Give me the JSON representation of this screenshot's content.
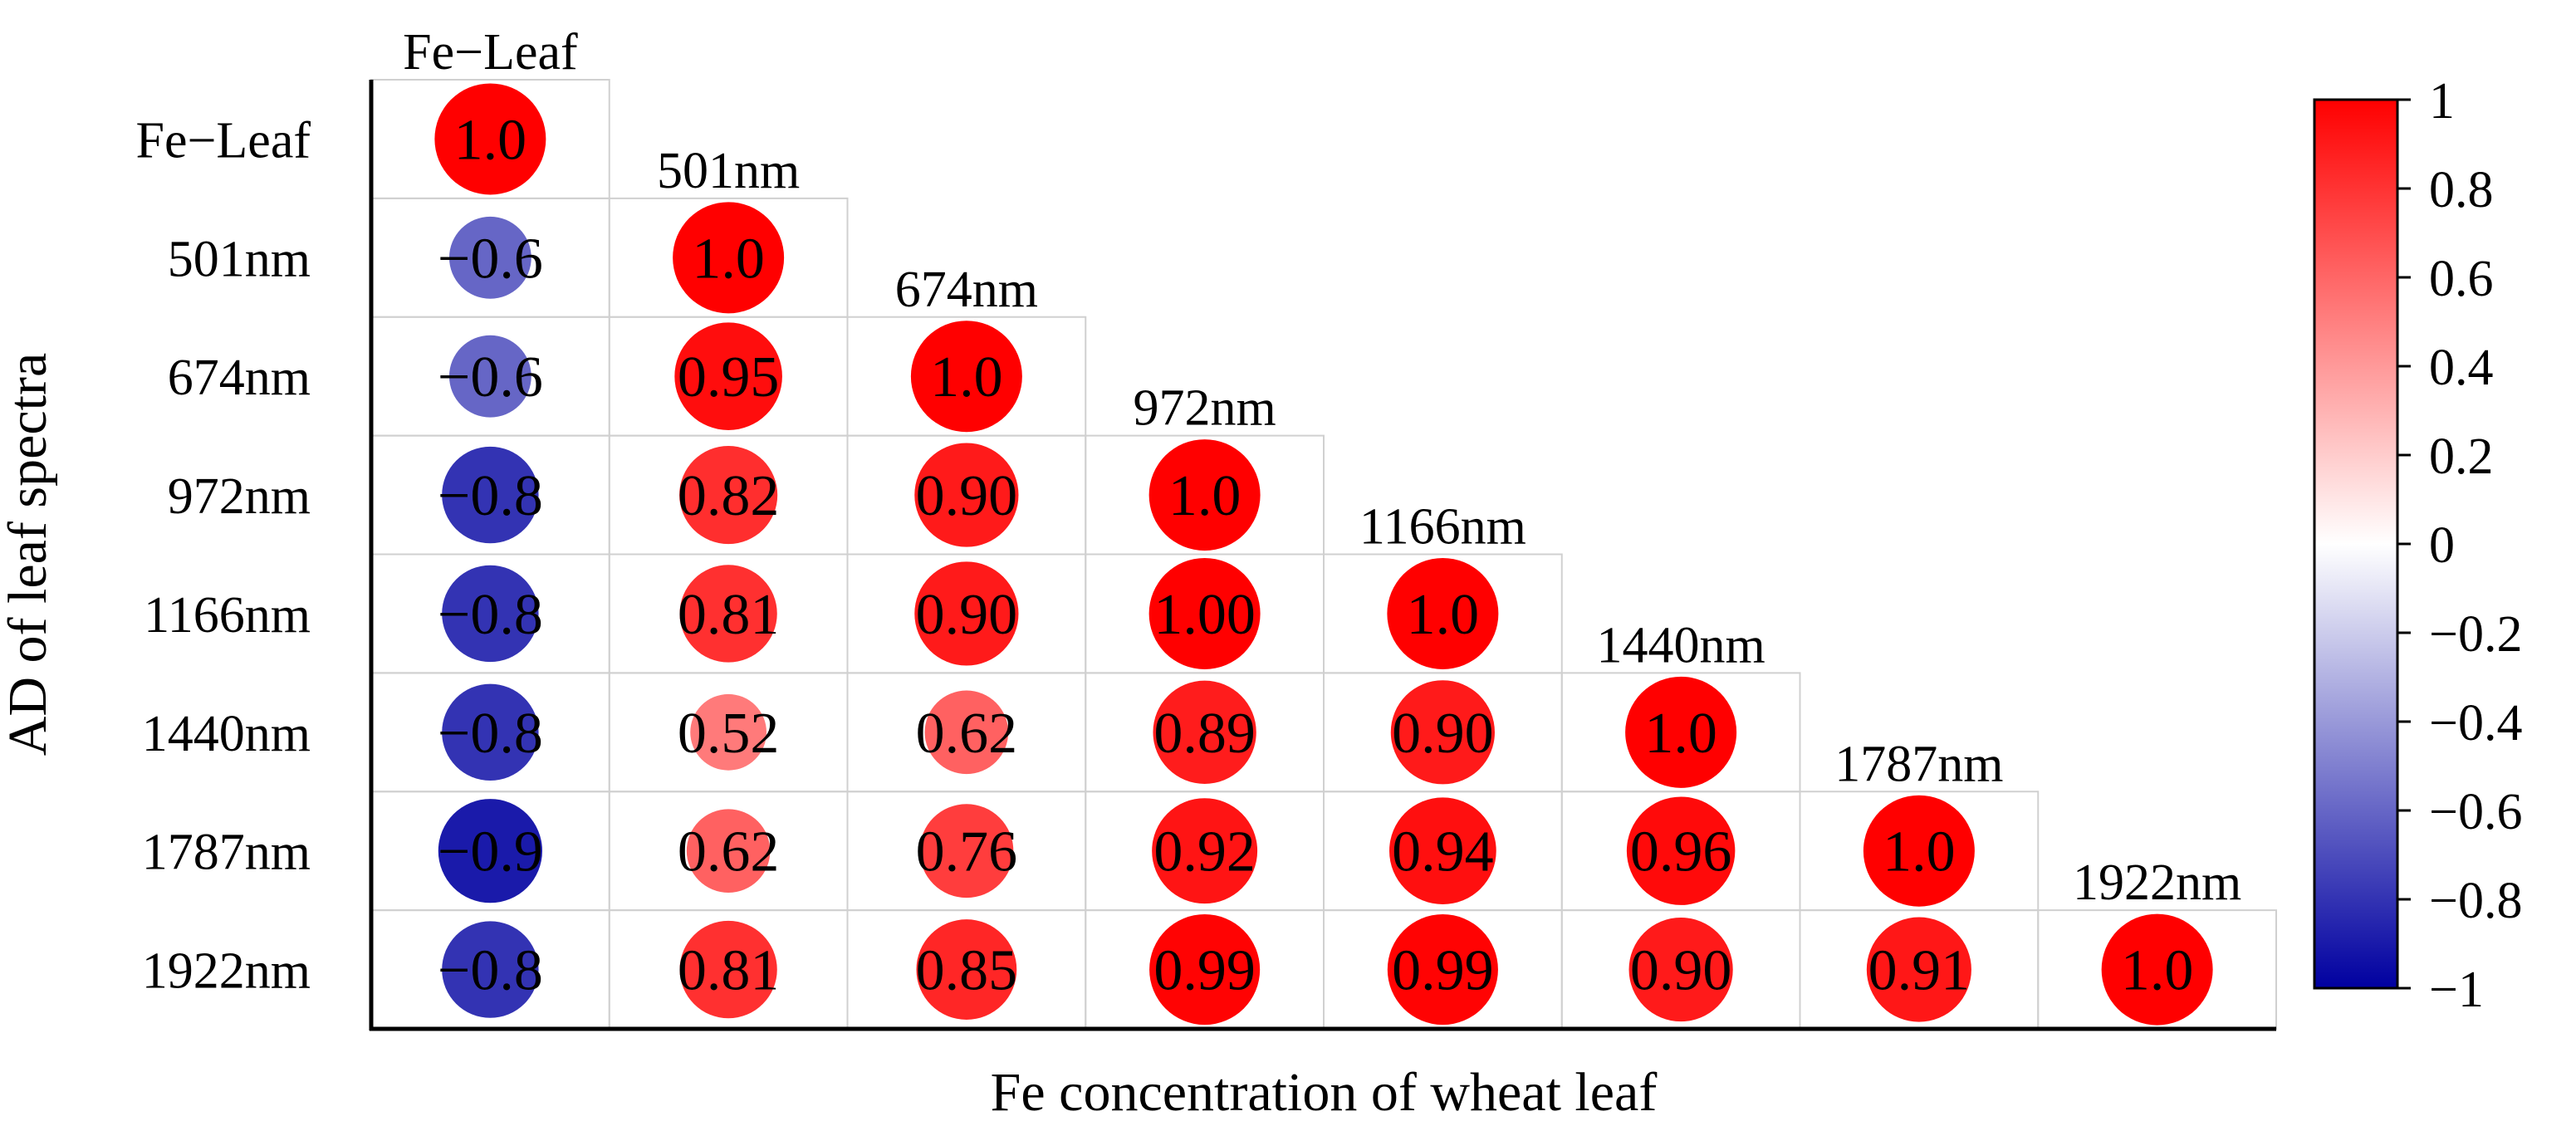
{
  "chart_data": {
    "type": "heatmap",
    "subtype": "lower-triangular correlation matrix (circle glyphs)",
    "variables": [
      "Fe−Leaf",
      "501nm",
      "674nm",
      "972nm",
      "1166nm",
      "1440nm",
      "1787nm",
      "1922nm"
    ],
    "value_labels": [
      [
        "1.0"
      ],
      [
        "−0.6",
        "1.0"
      ],
      [
        "−0.6",
        "0.95",
        "1.0"
      ],
      [
        "−0.8",
        "0.82",
        "0.90",
        "1.0"
      ],
      [
        "−0.8",
        "0.81",
        "0.90",
        "1.00",
        "1.0"
      ],
      [
        "−0.8",
        "0.52",
        "0.62",
        "0.89",
        "0.90",
        "1.0"
      ],
      [
        "−0.9",
        "0.62",
        "0.76",
        "0.92",
        "0.94",
        "0.96",
        "1.0"
      ],
      [
        "−0.8",
        "0.81",
        "0.85",
        "0.99",
        "0.99",
        "0.90",
        "0.91",
        "1.0"
      ]
    ],
    "values": [
      [
        1.0
      ],
      [
        -0.6,
        1.0
      ],
      [
        -0.6,
        0.95,
        1.0
      ],
      [
        -0.8,
        0.82,
        0.9,
        1.0
      ],
      [
        -0.8,
        0.81,
        0.9,
        1.0,
        1.0
      ],
      [
        -0.8,
        0.52,
        0.62,
        0.89,
        0.9,
        1.0
      ],
      [
        -0.9,
        0.62,
        0.76,
        0.92,
        0.94,
        0.96,
        1.0
      ],
      [
        -0.8,
        0.81,
        0.85,
        0.99,
        0.99,
        0.9,
        0.91,
        1.0
      ]
    ],
    "xlabel": "Fe concentration of wheat leaf",
    "ylabel": "AD of leaf spectra",
    "colorbar": {
      "range": [
        -1,
        1
      ],
      "ticks": [
        "1",
        "0.8",
        "0.6",
        "0.4",
        "0.2",
        "0",
        "−0.2",
        "−0.4",
        "−0.6",
        "−0.8",
        "−1"
      ],
      "tick_values": [
        1,
        0.8,
        0.6,
        0.4,
        0.2,
        0,
        -0.2,
        -0.4,
        -0.6,
        -0.8,
        -1
      ],
      "colors": {
        "negative": "#0000a0",
        "zero": "#ffffff",
        "positive": "#ff0000"
      },
      "placement": "right"
    }
  }
}
